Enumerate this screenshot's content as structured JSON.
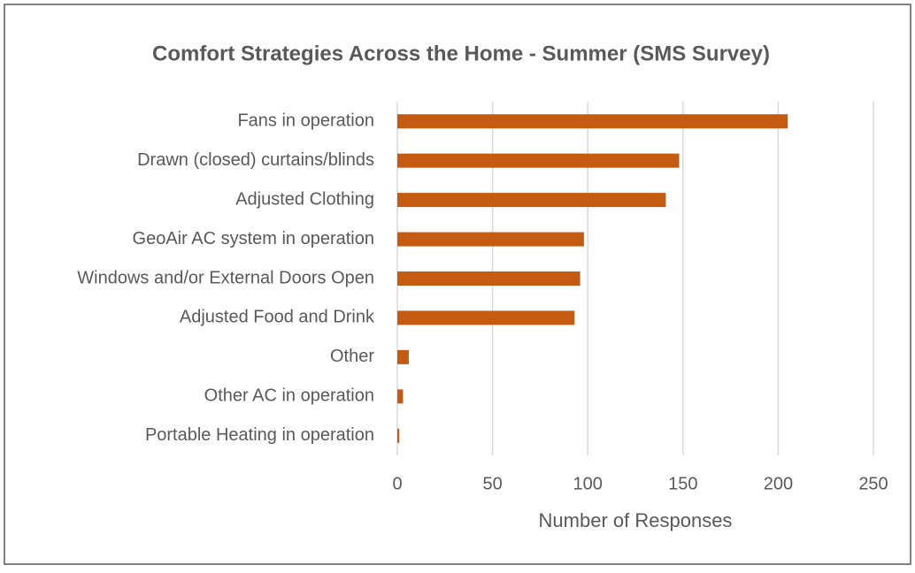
{
  "chart_data": {
    "type": "hbar",
    "title": "Comfort Strategies Across the Home - Summer (SMS Survey)",
    "categories": [
      "Fans in operation",
      "Drawn (closed) curtains/blinds",
      "Adjusted Clothing",
      "GeoAir AC system in operation",
      "Windows and/or External Doors Open",
      "Adjusted Food and Drink",
      "Other",
      "Other AC in operation",
      "Portable Heating in operation"
    ],
    "values": [
      205,
      148,
      141,
      98,
      96,
      93,
      6,
      3,
      1
    ],
    "color": "#c55a11",
    "xlabel": "Number of Responses",
    "xlim": [
      0,
      250
    ],
    "xticks": [
      0,
      50,
      100,
      150,
      200,
      250
    ],
    "grid": true
  }
}
